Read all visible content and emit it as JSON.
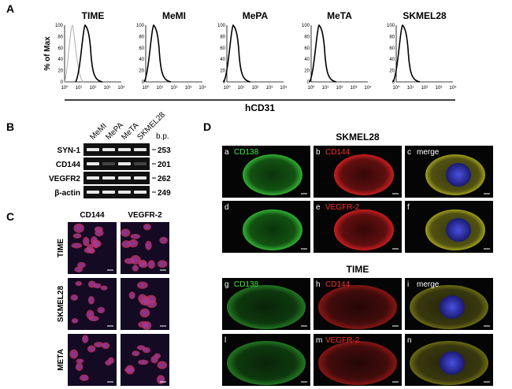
{
  "panel_a": {
    "label": "A",
    "ylabel": "% of Max",
    "xlabel": "hCD31",
    "titles": [
      "TIME",
      "MeMI",
      "MePA",
      "MeTA",
      "SKMEL28"
    ],
    "yticks": [
      "0",
      "20",
      "40",
      "60",
      "80",
      "100"
    ],
    "xticks": [
      "10⁰",
      "10¹",
      "10²",
      "10³",
      "10⁴"
    ]
  },
  "panel_b": {
    "label": "B",
    "unit": "b.p.",
    "lanes": [
      "MeMI",
      "MePA",
      "MeTA",
      "SKMEL28"
    ],
    "rows": [
      {
        "name": "SYN-1",
        "bp": "253"
      },
      {
        "name": "CD144",
        "bp": "201"
      },
      {
        "name": "VEGFR2",
        "bp": "262"
      },
      {
        "name": "β-actin",
        "bp": "249"
      }
    ]
  },
  "panel_c": {
    "label": "C",
    "columns": [
      "CD144",
      "VEGFR-2"
    ],
    "rows": [
      "TIME",
      "SKMEL28",
      "META"
    ]
  },
  "panel_d": {
    "label": "D",
    "groups": [
      {
        "title": "SKMEL28",
        "cells": [
          {
            "letter": "a",
            "stain": "CD138"
          },
          {
            "letter": "b",
            "stain": "CD144"
          },
          {
            "letter": "c",
            "stain": "merge"
          },
          {
            "letter": "d"
          },
          {
            "letter": "e",
            "stain": "VEGFR-2"
          },
          {
            "letter": "f"
          }
        ]
      },
      {
        "title": "TIME",
        "cells": [
          {
            "letter": "g",
            "stain": "CD138"
          },
          {
            "letter": "h",
            "stain": "CD144"
          },
          {
            "letter": "i",
            "stain": "merge"
          },
          {
            "letter": "l"
          },
          {
            "letter": "m",
            "stain": "VEGFR-2"
          },
          {
            "letter": "n"
          }
        ]
      }
    ]
  }
}
